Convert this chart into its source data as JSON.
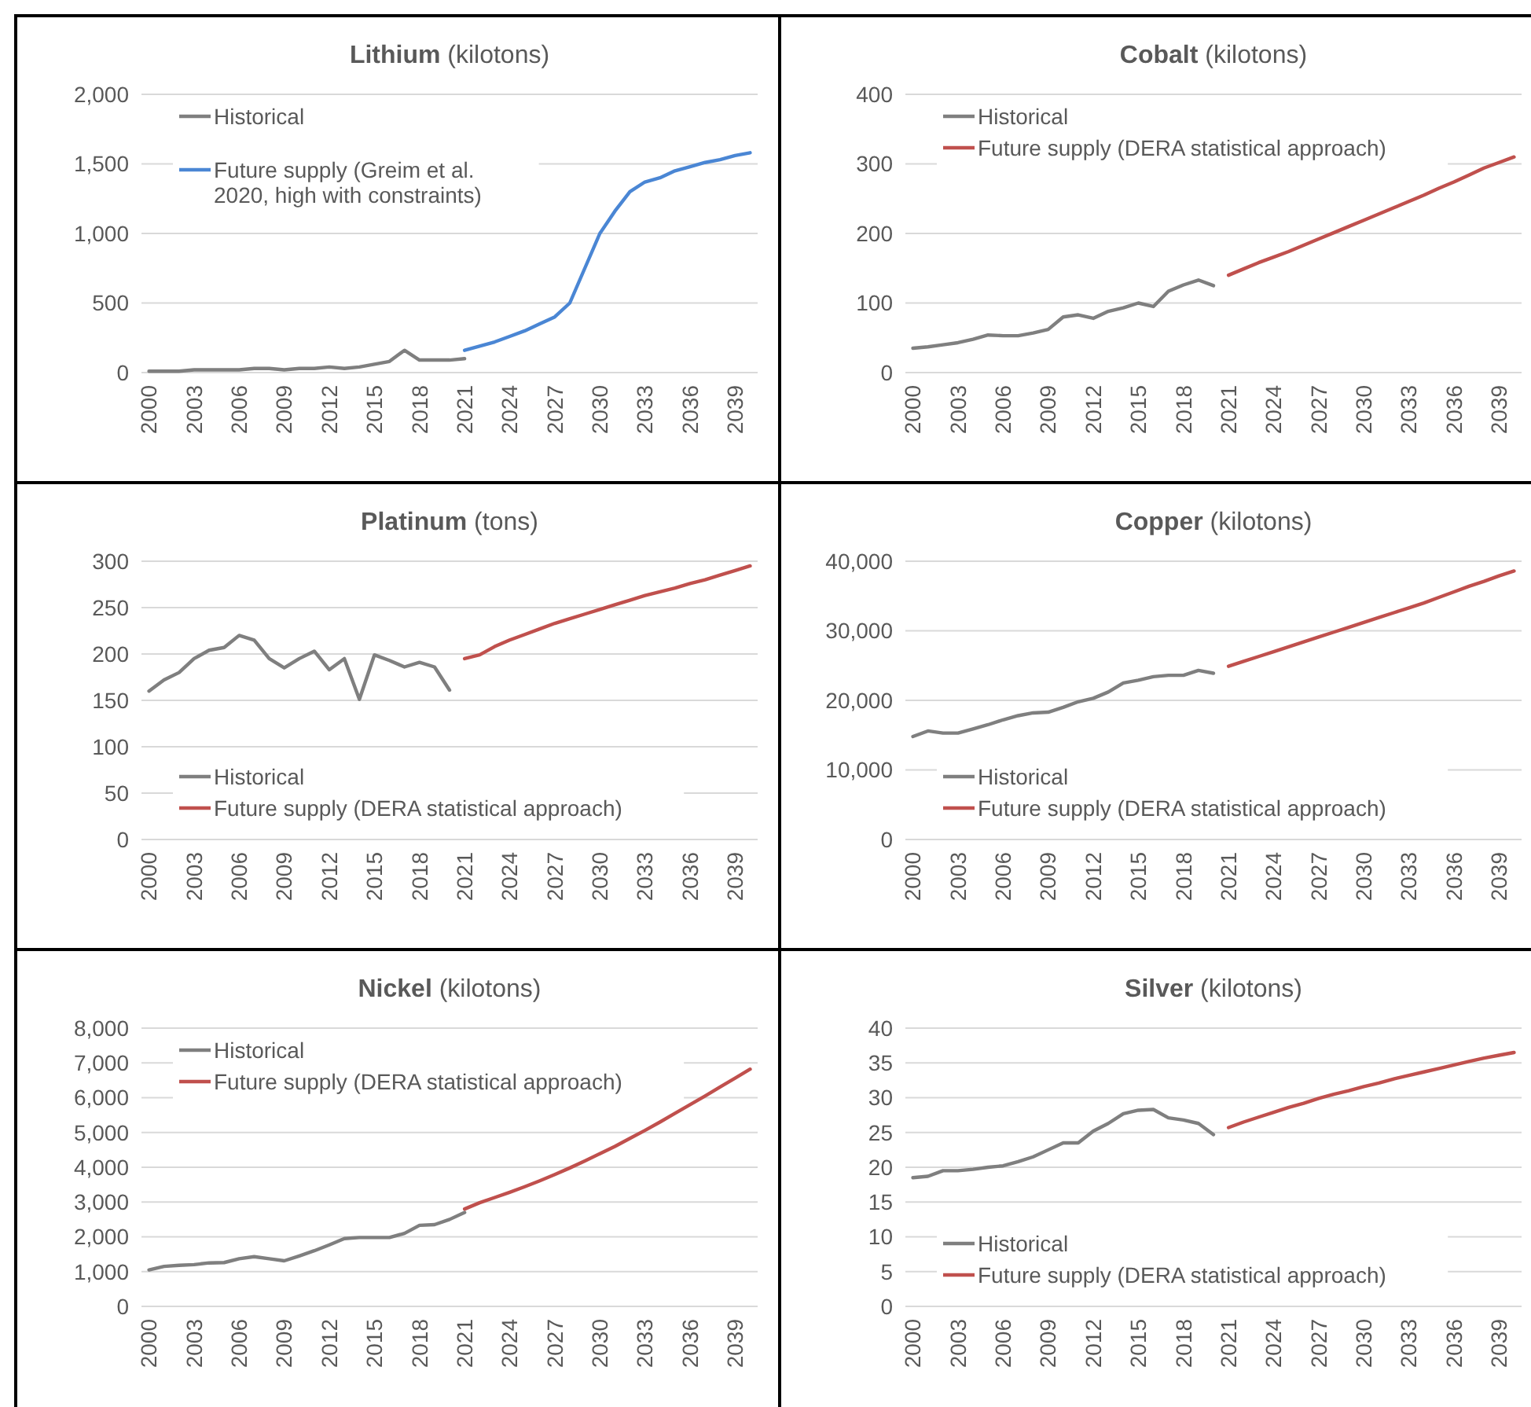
{
  "chart_data": [
    {
      "type": "line",
      "title": "Lithium (kilotons)",
      "categories": [
        "2000",
        null,
        null,
        "2003",
        null,
        null,
        "2006",
        null,
        null,
        "2009",
        null,
        null,
        "2012",
        null,
        null,
        "2015",
        null,
        null,
        "2018",
        null,
        null,
        "2021",
        null,
        null,
        "2024",
        null,
        null,
        "2027",
        null,
        null,
        "2030",
        null,
        null,
        "2033",
        null,
        null,
        "2036",
        null,
        null,
        "2039",
        null
      ],
      "ylim": [
        0,
        2000
      ],
      "yticks": [
        0,
        {
          "value": 500,
          "label": "500"
        },
        {
          "value": 1000,
          "label": "1,000"
        },
        {
          "value": 1500,
          "label": "1,500"
        },
        {
          "value": 2000,
          "label": "2,000"
        }
      ],
      "grid": "y",
      "legend": "top left",
      "series": [
        {
          "name": "Historical",
          "color": "#7f7f7f",
          "values": [
            10,
            10,
            10,
            20,
            20,
            20,
            20,
            30,
            30,
            20,
            30,
            30,
            40,
            30,
            40,
            60,
            80,
            160,
            90,
            90,
            90,
            100,
            null,
            null,
            null,
            null,
            null,
            null,
            null,
            null,
            null,
            null,
            null,
            null,
            null,
            null,
            null,
            null,
            null,
            null,
            null
          ]
        },
        {
          "name": "Future supply (Greim et al. 2020, high with constraints)",
          "color": "#4a86d4",
          "values": [
            null,
            null,
            null,
            null,
            null,
            null,
            null,
            null,
            null,
            null,
            null,
            null,
            null,
            null,
            null,
            null,
            null,
            null,
            null,
            null,
            null,
            160,
            190,
            220,
            260,
            300,
            350,
            400,
            500,
            750,
            1000,
            1160,
            1300,
            1370,
            1400,
            1450,
            1480,
            1510,
            1530,
            1560,
            1580
          ]
        }
      ]
    },
    {
      "type": "line",
      "title": "Cobalt (kilotons)",
      "categories": [
        "2000",
        null,
        null,
        "2003",
        null,
        null,
        "2006",
        null,
        null,
        "2009",
        null,
        null,
        "2012",
        null,
        null,
        "2015",
        null,
        null,
        "2018",
        null,
        null,
        "2021",
        null,
        null,
        "2024",
        null,
        null,
        "2027",
        null,
        null,
        "2030",
        null,
        null,
        "2033",
        null,
        null,
        "2036",
        null,
        null,
        "2039",
        null
      ],
      "ylim": [
        0,
        400
      ],
      "yticks": [
        0,
        100,
        200,
        300,
        400
      ],
      "grid": "y",
      "legend": "top left",
      "series": [
        {
          "name": "Historical",
          "color": "#7f7f7f",
          "values": [
            35,
            37,
            40,
            43,
            48,
            54,
            53,
            53,
            57,
            62,
            80,
            83,
            78,
            88,
            93,
            100,
            95,
            117,
            126,
            133,
            125,
            null,
            null,
            null,
            null,
            null,
            null,
            null,
            null,
            null,
            null,
            null,
            null,
            null,
            null,
            null,
            null,
            null,
            null,
            null,
            null
          ]
        },
        {
          "name": "Future supply (DERA statistical approach)",
          "color": "#c0504d",
          "values": [
            null,
            null,
            null,
            null,
            null,
            null,
            null,
            null,
            null,
            null,
            null,
            null,
            null,
            null,
            null,
            null,
            null,
            null,
            null,
            null,
            null,
            140,
            149,
            158,
            166,
            174,
            183,
            192,
            201,
            210,
            219,
            228,
            237,
            246,
            255,
            265,
            274,
            284,
            294,
            302,
            310
          ]
        }
      ]
    },
    {
      "type": "line",
      "title": "Platinum (tons)",
      "categories": [
        "2000",
        null,
        null,
        "2003",
        null,
        null,
        "2006",
        null,
        null,
        "2009",
        null,
        null,
        "2012",
        null,
        null,
        "2015",
        null,
        null,
        "2018",
        null,
        null,
        "2021",
        null,
        null,
        "2024",
        null,
        null,
        "2027",
        null,
        null,
        "2030",
        null,
        null,
        "2033",
        null,
        null,
        "2036",
        null,
        null,
        "2039",
        null
      ],
      "ylim": [
        0,
        300
      ],
      "yticks": [
        0,
        50,
        100,
        150,
        200,
        250,
        300
      ],
      "grid": "y",
      "legend": "bottom left",
      "series": [
        {
          "name": "Historical",
          "color": "#7f7f7f",
          "values": [
            160,
            172,
            180,
            195,
            204,
            207,
            220,
            215,
            195,
            185,
            195,
            203,
            183,
            195,
            151,
            199,
            193,
            186,
            191,
            186,
            161,
            null,
            null,
            null,
            null,
            null,
            null,
            null,
            null,
            null,
            null,
            null,
            null,
            null,
            null,
            null,
            null,
            null,
            null,
            null,
            null
          ]
        },
        {
          "name": "Future supply (DERA statistical approach)",
          "color": "#c0504d",
          "values": [
            null,
            null,
            null,
            null,
            null,
            null,
            null,
            null,
            null,
            null,
            null,
            null,
            null,
            null,
            null,
            null,
            null,
            null,
            null,
            null,
            null,
            195,
            199,
            208,
            215,
            221,
            227,
            233,
            238,
            243,
            248,
            253,
            258,
            263,
            267,
            271,
            276,
            280,
            285,
            290,
            295
          ]
        }
      ]
    },
    {
      "type": "line",
      "title": "Copper (kilotons)",
      "categories": [
        "2000",
        null,
        null,
        "2003",
        null,
        null,
        "2006",
        null,
        null,
        "2009",
        null,
        null,
        "2012",
        null,
        null,
        "2015",
        null,
        null,
        "2018",
        null,
        null,
        "2021",
        null,
        null,
        "2024",
        null,
        null,
        "2027",
        null,
        null,
        "2030",
        null,
        null,
        "2033",
        null,
        null,
        "2036",
        null,
        null,
        "2039",
        null
      ],
      "ylim": [
        0,
        40000
      ],
      "yticks": [
        0,
        {
          "value": 10000,
          "label": "10,000"
        },
        {
          "value": 20000,
          "label": "20,000"
        },
        {
          "value": 30000,
          "label": "30,000"
        },
        {
          "value": 40000,
          "label": "40,000"
        }
      ],
      "grid": "y",
      "legend": "bottom left",
      "series": [
        {
          "name": "Historical",
          "color": "#7f7f7f",
          "values": [
            14800,
            15600,
            15300,
            15300,
            15900,
            16500,
            17200,
            17800,
            18200,
            18300,
            19000,
            19800,
            20300,
            21200,
            22500,
            22900,
            23400,
            23600,
            23600,
            24300,
            23900,
            null,
            null,
            null,
            null,
            null,
            null,
            null,
            null,
            null,
            null,
            null,
            null,
            null,
            null,
            null,
            null,
            null,
            null,
            null,
            null
          ]
        },
        {
          "name": "Future supply (DERA statistical approach)",
          "color": "#c0504d",
          "values": [
            null,
            null,
            null,
            null,
            null,
            null,
            null,
            null,
            null,
            null,
            null,
            null,
            null,
            null,
            null,
            null,
            null,
            null,
            null,
            null,
            null,
            24900,
            25600,
            26300,
            27000,
            27700,
            28400,
            29100,
            29800,
            30500,
            31200,
            31900,
            32600,
            33300,
            34000,
            34800,
            35600,
            36400,
            37100,
            37900,
            38600
          ]
        }
      ]
    },
    {
      "type": "line",
      "title": "Nickel (kilotons)",
      "categories": [
        "2000",
        null,
        null,
        "2003",
        null,
        null,
        "2006",
        null,
        null,
        "2009",
        null,
        null,
        "2012",
        null,
        null,
        "2015",
        null,
        null,
        "2018",
        null,
        null,
        "2021",
        null,
        null,
        "2024",
        null,
        null,
        "2027",
        null,
        null,
        "2030",
        null,
        null,
        "2033",
        null,
        null,
        "2036",
        null,
        null,
        "2039",
        null
      ],
      "ylim": [
        0,
        8000
      ],
      "yticks": [
        0,
        {
          "value": 1000,
          "label": "1,000"
        },
        {
          "value": 2000,
          "label": "2,000"
        },
        {
          "value": 3000,
          "label": "3,000"
        },
        {
          "value": 4000,
          "label": "4,000"
        },
        {
          "value": 5000,
          "label": "5,000"
        },
        {
          "value": 6000,
          "label": "6,000"
        },
        {
          "value": 7000,
          "label": "7,000"
        },
        {
          "value": 8000,
          "label": "8,000"
        }
      ],
      "grid": "y",
      "legend": "top left",
      "series": [
        {
          "name": "Historical",
          "color": "#7f7f7f",
          "values": [
            1050,
            1150,
            1180,
            1200,
            1250,
            1260,
            1370,
            1430,
            1370,
            1310,
            1450,
            1600,
            1770,
            1950,
            1980,
            1980,
            1980,
            2100,
            2330,
            2350,
            2500,
            2700,
            null,
            null,
            null,
            null,
            null,
            null,
            null,
            null,
            null,
            null,
            null,
            null,
            null,
            null,
            null,
            null,
            null,
            null,
            null
          ]
        },
        {
          "name": "Future supply (DERA statistical approach)",
          "color": "#c0504d",
          "values": [
            null,
            null,
            null,
            null,
            null,
            null,
            null,
            null,
            null,
            null,
            null,
            null,
            null,
            null,
            null,
            null,
            null,
            null,
            null,
            null,
            null,
            2800,
            2980,
            3130,
            3280,
            3440,
            3610,
            3790,
            3980,
            4180,
            4390,
            4600,
            4830,
            5060,
            5300,
            5550,
            5800,
            6050,
            6310,
            6560,
            6820
          ]
        }
      ]
    },
    {
      "type": "line",
      "title": "Silver (kilotons)",
      "categories": [
        "2000",
        null,
        null,
        "2003",
        null,
        null,
        "2006",
        null,
        null,
        "2009",
        null,
        null,
        "2012",
        null,
        null,
        "2015",
        null,
        null,
        "2018",
        null,
        null,
        "2021",
        null,
        null,
        "2024",
        null,
        null,
        "2027",
        null,
        null,
        "2030",
        null,
        null,
        "2033",
        null,
        null,
        "2036",
        null,
        null,
        "2039",
        null
      ],
      "ylim": [
        0,
        40
      ],
      "yticks": [
        0,
        5,
        10,
        15,
        20,
        25,
        30,
        35,
        40
      ],
      "grid": "y",
      "legend": "bottom left",
      "series": [
        {
          "name": "Historical",
          "color": "#7f7f7f",
          "values": [
            18.5,
            18.7,
            19.5,
            19.5,
            19.7,
            20.0,
            20.2,
            20.8,
            21.5,
            22.5,
            23.5,
            23.5,
            25.2,
            26.3,
            27.7,
            28.2,
            28.3,
            27.1,
            26.8,
            26.3,
            24.7,
            null,
            null,
            null,
            null,
            null,
            null,
            null,
            null,
            null,
            null,
            null,
            null,
            null,
            null,
            null,
            null,
            null,
            null,
            null,
            null
          ]
        },
        {
          "name": "Future supply (DERA statistical approach)",
          "color": "#c0504d",
          "values": [
            null,
            null,
            null,
            null,
            null,
            null,
            null,
            null,
            null,
            null,
            null,
            null,
            null,
            null,
            null,
            null,
            null,
            null,
            null,
            null,
            null,
            25.7,
            26.5,
            27.2,
            27.9,
            28.6,
            29.2,
            29.9,
            30.5,
            31.0,
            31.6,
            32.1,
            32.7,
            33.2,
            33.7,
            34.2,
            34.7,
            35.2,
            35.7,
            36.1,
            36.5
          ]
        }
      ]
    }
  ]
}
